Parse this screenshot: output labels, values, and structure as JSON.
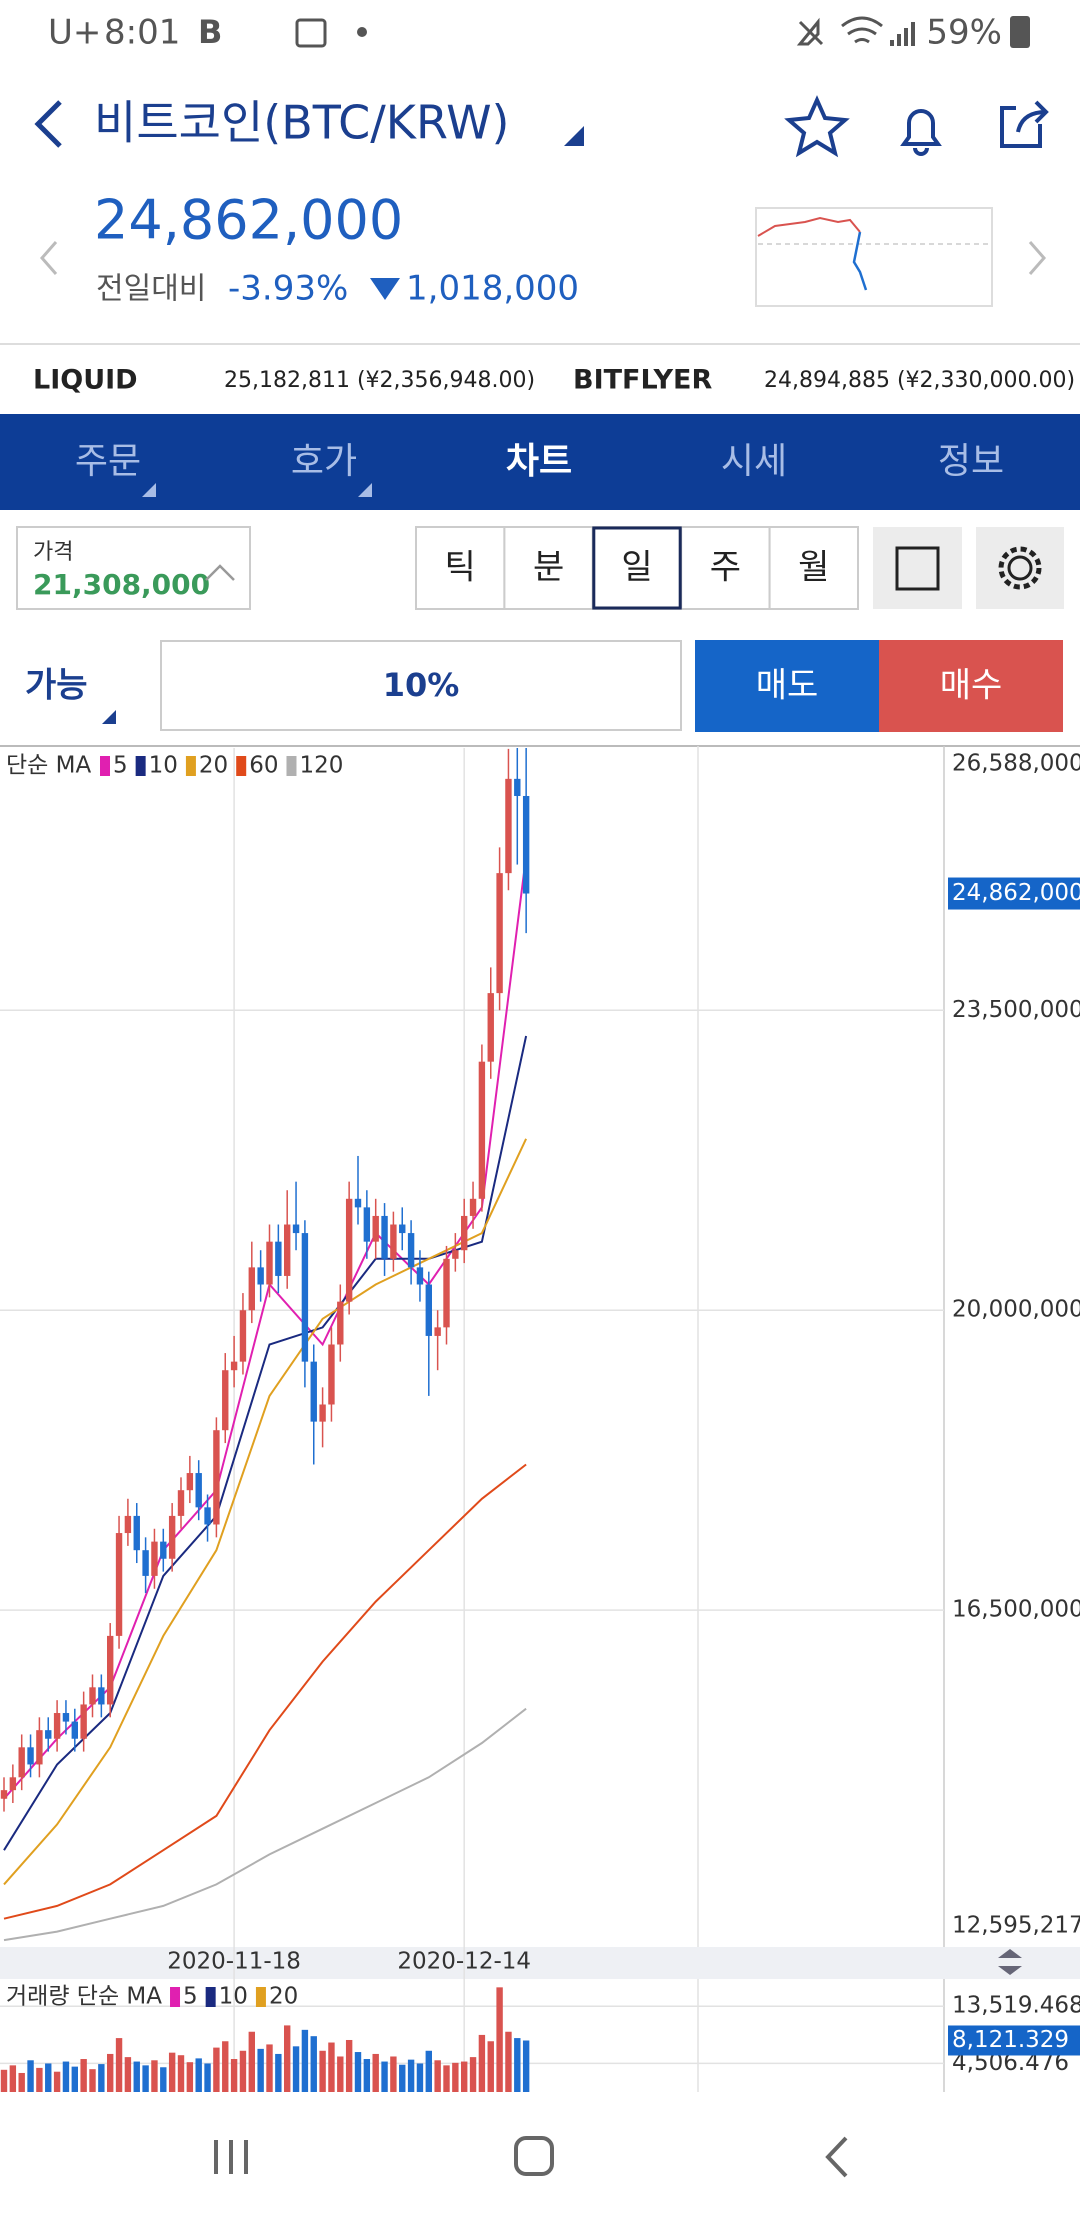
{
  "status": {
    "carrier": "U+",
    "time": "8:01",
    "icon_letter": "B",
    "battery": "59%"
  },
  "header": {
    "title": "비트코인(BTC/KRW)"
  },
  "price": {
    "value": "24,862,000",
    "change_label": "전일대비",
    "change_pct": "-3.93%",
    "change_abs": "1,018,000"
  },
  "exchanges": [
    {
      "name": "LIQUID",
      "price": "25,182,811 (¥2,356,948.00)"
    },
    {
      "name": "BITFLYER",
      "price": "24,894,885 (¥2,330,000.00)"
    }
  ],
  "tabs": [
    "주문",
    "호가",
    "차트",
    "시세",
    "정보"
  ],
  "active_tab": 2,
  "price_box": {
    "label": "가격",
    "value": "21,308,000"
  },
  "periods": [
    "틱",
    "분",
    "일",
    "주",
    "월"
  ],
  "active_period": 2,
  "order": {
    "available": "가능",
    "percent": "10%",
    "sell": "매도",
    "buy": "매수"
  },
  "chart": {
    "type": "candlestick",
    "legend_prefix": "단순 MA",
    "up_color": "#d9534f",
    "down_color": "#1f6fd0",
    "ylim": [
      12500000,
      26700000
    ],
    "yticks": [
      {
        "value": 26588000,
        "label": "26,588,000"
      },
      {
        "value": 23500000,
        "label": "23,500,000"
      },
      {
        "value": 20000000,
        "label": "20,000,000"
      },
      {
        "value": 16500000,
        "label": "16,500,000"
      },
      {
        "value": 12595217,
        "label": "12,595,217"
      }
    ],
    "current": {
      "value": 24862000,
      "label": "24,862,000"
    },
    "xticks": [
      {
        "value": 26,
        "label": "2020-11-18"
      },
      {
        "value": 52,
        "label": "2020-12-14"
      }
    ],
    "candles": [
      [
        14300000,
        14550000,
        14150000,
        14400000
      ],
      [
        14400000,
        14700000,
        14250000,
        14550000
      ],
      [
        14550000,
        15050000,
        14400000,
        14900000
      ],
      [
        14900000,
        15050000,
        14550000,
        14700000
      ],
      [
        14700000,
        15250000,
        14550000,
        15100000
      ],
      [
        15100000,
        15250000,
        14850000,
        15000000
      ],
      [
        15000000,
        15450000,
        14850000,
        15300000
      ],
      [
        15300000,
        15450000,
        15050000,
        15200000
      ],
      [
        15200000,
        15350000,
        14850000,
        15000000
      ],
      [
        15000000,
        15550000,
        14850000,
        15400000
      ],
      [
        15400000,
        15750000,
        15250000,
        15600000
      ],
      [
        15600000,
        15750000,
        15250000,
        15400000
      ],
      [
        15400000,
        16350000,
        15250000,
        16200000
      ],
      [
        16200000,
        17600000,
        16050000,
        17400000
      ],
      [
        17400000,
        17800000,
        17250000,
        17600000
      ],
      [
        17600000,
        17750000,
        17050000,
        17200000
      ],
      [
        17200000,
        17350000,
        16700000,
        16900000
      ],
      [
        16900000,
        17450000,
        16750000,
        17300000
      ],
      [
        17300000,
        17450000,
        16950000,
        17100000
      ],
      [
        17100000,
        17750000,
        16950000,
        17600000
      ],
      [
        17600000,
        18050000,
        17450000,
        17900000
      ],
      [
        17900000,
        18300000,
        17750000,
        18100000
      ],
      [
        18100000,
        18250000,
        17550000,
        17700000
      ],
      [
        17700000,
        17850000,
        17300000,
        17500000
      ],
      [
        17500000,
        18750000,
        17350000,
        18600000
      ],
      [
        18600000,
        19500000,
        18450000,
        19300000
      ],
      [
        19300000,
        19700000,
        19100000,
        19400000
      ],
      [
        19400000,
        20200000,
        19250000,
        20000000
      ],
      [
        20000000,
        20800000,
        19850000,
        20500000
      ],
      [
        20500000,
        20700000,
        20100000,
        20300000
      ],
      [
        20300000,
        21000000,
        20150000,
        20800000
      ],
      [
        20800000,
        21000000,
        20200000,
        20400000
      ],
      [
        20400000,
        21400000,
        20250000,
        21000000
      ],
      [
        21000000,
        21500000,
        20700000,
        20900000
      ],
      [
        20900000,
        21050000,
        19100000,
        19400000
      ],
      [
        19400000,
        19600000,
        18200000,
        18700000
      ],
      [
        18700000,
        19100000,
        18400000,
        18900000
      ],
      [
        18900000,
        19800000,
        18700000,
        19600000
      ],
      [
        19600000,
        20300000,
        19400000,
        20100000
      ],
      [
        20100000,
        21500000,
        19950000,
        21300000
      ],
      [
        21300000,
        21800000,
        21000000,
        21200000
      ],
      [
        21200000,
        21400000,
        20600000,
        20800000
      ],
      [
        20800000,
        21300000,
        20600000,
        21100000
      ],
      [
        21100000,
        21250000,
        20400000,
        20600000
      ],
      [
        20600000,
        21150000,
        20450000,
        21000000
      ],
      [
        21000000,
        21200000,
        20700000,
        20900000
      ],
      [
        20900000,
        21050000,
        20300000,
        20500000
      ],
      [
        20500000,
        20700000,
        20100000,
        20300000
      ],
      [
        20300000,
        20450000,
        19000000,
        19700000
      ],
      [
        19700000,
        20000000,
        19300000,
        19800000
      ],
      [
        19800000,
        20750000,
        19600000,
        20600000
      ],
      [
        20600000,
        20900000,
        20450000,
        20700000
      ],
      [
        20700000,
        21300000,
        20550000,
        21100000
      ],
      [
        21100000,
        21500000,
        20950000,
        21300000
      ],
      [
        21300000,
        23100000,
        21150000,
        22900000
      ],
      [
        22900000,
        24000000,
        22700000,
        23700000
      ],
      [
        23700000,
        25400000,
        23500000,
        25100000
      ],
      [
        25100000,
        26550000,
        24900000,
        26200000
      ],
      [
        26200000,
        26590000,
        25200000,
        26000000
      ],
      [
        26000000,
        26590000,
        24400000,
        24862000
      ]
    ],
    "ma_series": [
      {
        "name": "5",
        "color": "#e020b0",
        "x": [
          0,
          6,
          12,
          18,
          24,
          30,
          36,
          42,
          48,
          54,
          59
        ],
        "values": [
          14300000,
          15000000,
          15600000,
          17200000,
          17900000,
          20300000,
          19600000,
          20900000,
          20300000,
          21200000,
          25300000
        ]
      },
      {
        "name": "10",
        "color": "#1a2a80",
        "x": [
          0,
          6,
          12,
          18,
          24,
          30,
          36,
          42,
          48,
          54,
          59
        ],
        "values": [
          13700000,
          14700000,
          15300000,
          16900000,
          17600000,
          19600000,
          19800000,
          20600000,
          20600000,
          20800000,
          23200000
        ]
      },
      {
        "name": "20",
        "color": "#e0a020",
        "x": [
          0,
          6,
          12,
          18,
          24,
          30,
          36,
          42,
          48,
          54,
          59
        ],
        "values": [
          13300000,
          14000000,
          14900000,
          16200000,
          17200000,
          19000000,
          19900000,
          20300000,
          20600000,
          20900000,
          22000000
        ]
      },
      {
        "name": "60",
        "color": "#e04a1a",
        "x": [
          0,
          6,
          12,
          18,
          24,
          30,
          36,
          42,
          48,
          54,
          59
        ],
        "values": [
          12900000,
          13050000,
          13300000,
          13700000,
          14100000,
          15100000,
          15900000,
          16600000,
          17200000,
          17800000,
          18200000
        ]
      },
      {
        "name": "120",
        "color": "#b0b0b0",
        "x": [
          0,
          6,
          12,
          18,
          24,
          30,
          36,
          42,
          48,
          54,
          59
        ],
        "values": [
          12650000,
          12750000,
          12900000,
          13050000,
          13300000,
          13650000,
          13950000,
          14250000,
          14550000,
          14950000,
          15350000
        ]
      }
    ]
  },
  "volume": {
    "legend_prefix": "거래량 단순 MA",
    "ma_names": [
      {
        "name": "5",
        "color": "#e020b0"
      },
      {
        "name": "10",
        "color": "#1a2a80"
      },
      {
        "name": "20",
        "color": "#e0a020"
      }
    ],
    "ylim": [
      0,
      17500
    ],
    "yticks": [
      {
        "value": 13519.468,
        "label": "13,519.468"
      },
      {
        "value": 4506.476,
        "label": "4,506.476"
      }
    ],
    "current": {
      "value": 8121.329,
      "label": "8,121.329"
    },
    "values": [
      3500,
      4200,
      3000,
      5000,
      3800,
      4500,
      3200,
      4800,
      4000,
      5200,
      3600,
      4400,
      6000,
      8500,
      5500,
      4800,
      4200,
      5000,
      3900,
      6200,
      5800,
      4700,
      5300,
      4500,
      7000,
      8000,
      5200,
      6500,
      9500,
      6800,
      7500,
      6000,
      10500,
      7200,
      9800,
      8800,
      6500,
      7800,
      5600,
      8200,
      6300,
      5200,
      6000,
      4800,
      5600,
      4300,
      5100,
      4500,
      6500,
      5000,
      4200,
      4600,
      4800,
      5500,
      9000,
      8000,
      16500,
      9500,
      8500,
      8121.329
    ]
  }
}
